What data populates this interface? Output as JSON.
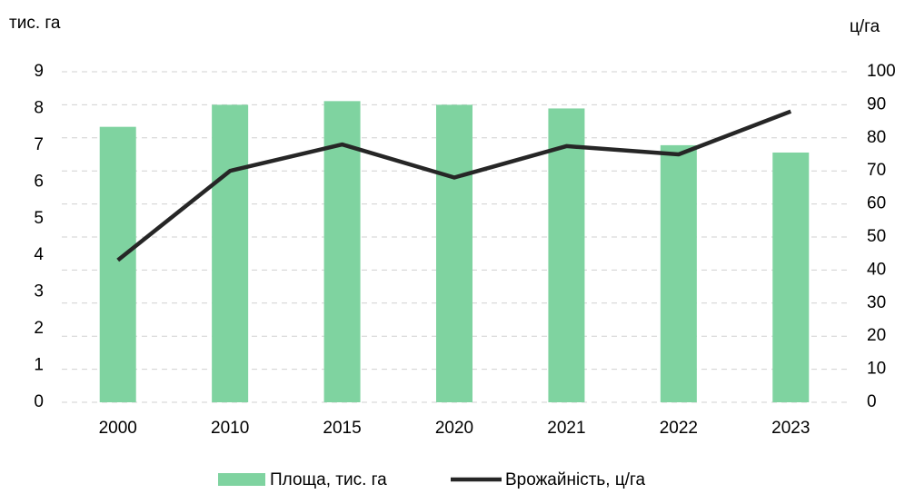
{
  "chart_data": {
    "type": "bar",
    "ylabel": "тис. га",
    "y2label": "ц/га",
    "categories": [
      "2000",
      "2010",
      "2015",
      "2020",
      "2021",
      "2022",
      "2023"
    ],
    "series": [
      {
        "name": "Площа, тис. га",
        "color": "#7fd3a0",
        "type": "bar",
        "values": [
          7.5,
          8.1,
          8.2,
          8.1,
          8.0,
          7.0,
          6.8
        ]
      },
      {
        "name": "Врожайність, ц/га",
        "color": "#262626",
        "type": "line",
        "axis": "y2",
        "values": [
          43,
          70,
          78,
          68,
          77.5,
          75,
          88
        ]
      }
    ],
    "ylim": [
      0,
      9
    ],
    "yticks": [
      0,
      1,
      2,
      3,
      4,
      5,
      6,
      7,
      8,
      9
    ],
    "y2lim": [
      0,
      100
    ],
    "y2ticks": [
      0,
      10,
      20,
      30,
      40,
      50,
      60,
      70,
      80,
      90,
      100
    ],
    "grid": true,
    "legend": "bottom"
  }
}
